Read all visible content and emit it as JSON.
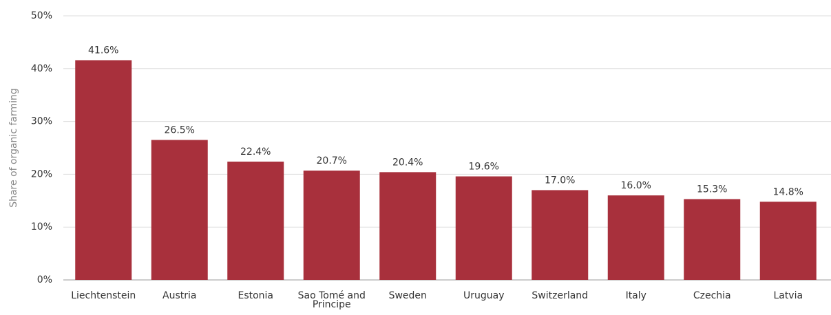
{
  "chart_data": {
    "type": "bar",
    "y_label": "Share of organic farming",
    "categories": [
      "Liechtenstein",
      "Austria",
      "Estonia",
      "Sao Tomé and Principe",
      "Sweden",
      "Uruguay",
      "Switzerland",
      "Italy",
      "Czechia",
      "Latvia"
    ],
    "values": [
      41.6,
      26.5,
      22.4,
      20.7,
      20.4,
      19.6,
      17.0,
      16.0,
      15.3,
      14.8
    ],
    "value_labels": [
      "41.6%",
      "26.5%",
      "22.4%",
      "20.7%",
      "20.4%",
      "19.6%",
      "17.0%",
      "16.0%",
      "15.3%",
      "14.8%"
    ],
    "color": "#a8303c",
    "ylim": [
      0,
      50
    ],
    "yticks": [
      {
        "value": 0,
        "label": "0%"
      },
      {
        "value": 10,
        "label": "10%"
      },
      {
        "value": 20,
        "label": "20%"
      },
      {
        "value": 30,
        "label": "30%"
      },
      {
        "value": 40,
        "label": "40%"
      },
      {
        "value": 50,
        "label": "50%"
      }
    ],
    "grid": true
  }
}
